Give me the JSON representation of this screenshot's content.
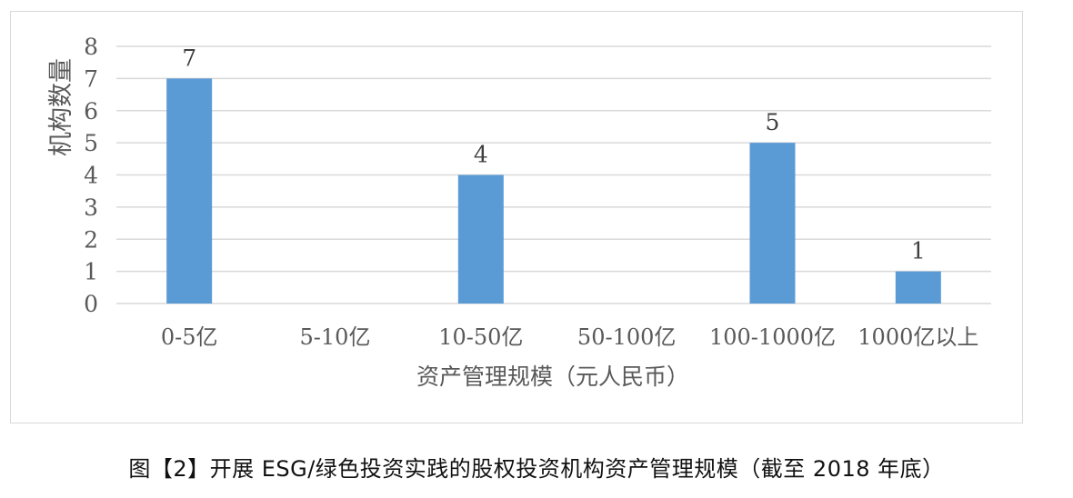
{
  "chart_data": {
    "type": "bar",
    "categories": [
      "0-5亿",
      "5-10亿",
      "10-50亿",
      "50-100亿",
      "100-1000亿",
      "1000亿以上"
    ],
    "values": [
      7,
      0,
      4,
      0,
      5,
      1
    ],
    "data_labels": [
      "7",
      "",
      "4",
      "",
      "5",
      "1"
    ],
    "xlabel": "资产管理规模（元人民币）",
    "ylabel": "机构数量",
    "ylim": [
      0,
      8
    ],
    "yticks": [
      0,
      1,
      2,
      3,
      4,
      5,
      6,
      7,
      8
    ],
    "grid": true,
    "bar_color": "#5b9bd5",
    "grid_color": "#d9d9d9"
  },
  "caption": "图【2】开展 ESG/绿色投资实践的股权投资机构资产管理规模（截至 2018 年底）"
}
